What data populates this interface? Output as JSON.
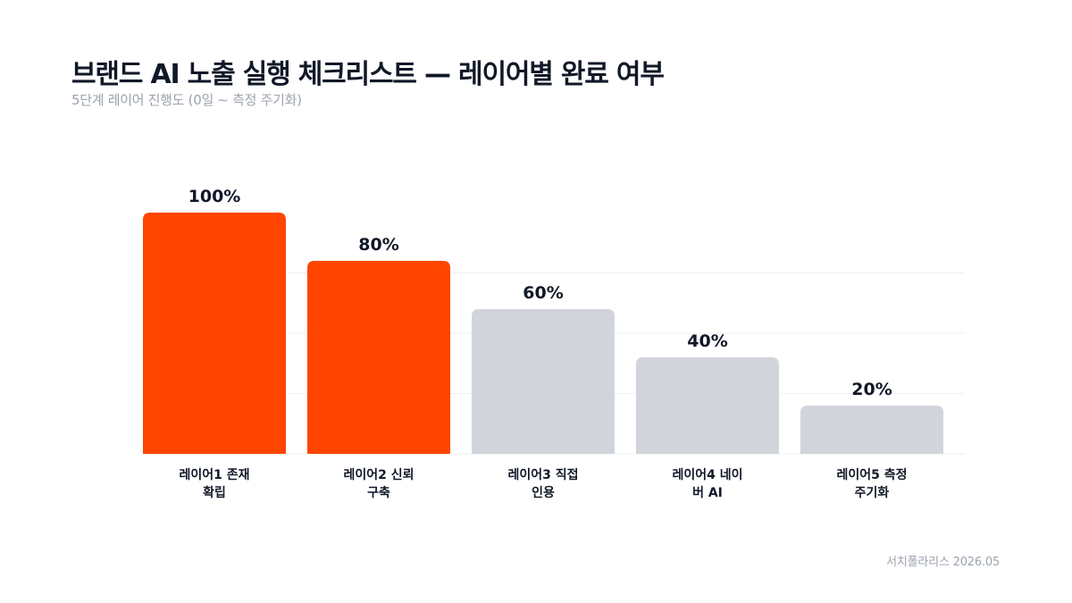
{
  "title": "브랜드 AI 노출 실행 체크리스트 — 레이어별 완료 여부",
  "subtitle": "5단계 레이어 진행도 (0일 ~ 측정 주기화)",
  "footer": "서치폴라리스 2026.05",
  "colors": {
    "completed": "#ff4500",
    "pending": "#d1d5db",
    "grid": "#eef0f2",
    "label": "#111827"
  },
  "chart_data": {
    "type": "bar",
    "categories": [
      [
        "레이어1 존재",
        "확립"
      ],
      [
        "레이어2 신뢰",
        "구축"
      ],
      [
        "레이어3 직접",
        "인용"
      ],
      [
        "레이어4 네이",
        "버 AI"
      ],
      [
        "레이어5 측정",
        "주기화"
      ]
    ],
    "values": [
      100,
      80,
      60,
      40,
      20
    ],
    "value_labels": [
      "100%",
      "80%",
      "60%",
      "40%",
      "20%"
    ],
    "completed": [
      true,
      true,
      false,
      false,
      false
    ],
    "ylim": [
      0,
      100
    ],
    "grid": true,
    "gridlines": [
      25,
      50,
      75
    ],
    "legend": "none"
  }
}
